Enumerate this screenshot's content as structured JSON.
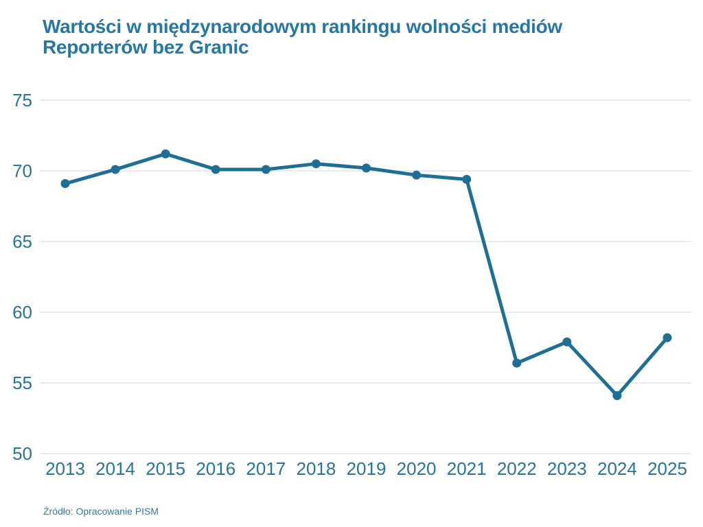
{
  "chart_data": {
    "type": "line",
    "title": "Wartości w międzynarodowym rankingu wolności mediów Reporterów bez Granic",
    "title_lines": [
      "Wartości w międzynarodowym rankingu wolności mediów",
      "Reporterów bez Granic"
    ],
    "source": "Źródło: Opracowanie PISM",
    "categories": [
      2013,
      2014,
      2015,
      2016,
      2017,
      2018,
      2019,
      2020,
      2021,
      2022,
      2023,
      2024,
      2025
    ],
    "values": [
      69.1,
      70.1,
      71.2,
      70.1,
      70.1,
      70.5,
      70.2,
      69.7,
      69.4,
      56.4,
      57.9,
      54.1,
      58.2
    ],
    "xlabel": "",
    "ylabel": "",
    "ylim": [
      50,
      75
    ],
    "yticks": [
      50,
      55,
      60,
      65,
      70,
      75
    ],
    "grid": "horizontal",
    "legend": "none",
    "colors": {
      "line": "#1E6E96",
      "marker": "#1E6E96",
      "title": "#2578A5",
      "tick_labels": "#26749B",
      "gridline": "#DDE4E8",
      "source": "#2E7CA3",
      "background": "#FFFFFF"
    }
  }
}
